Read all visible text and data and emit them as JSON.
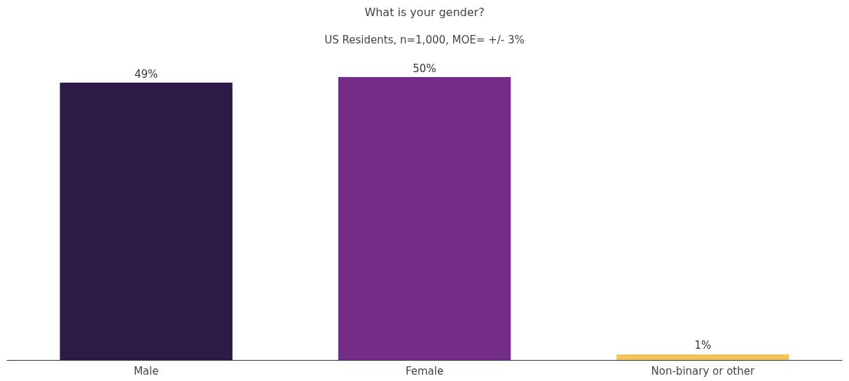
{
  "chart_data": {
    "type": "bar",
    "title": "What is your gender?",
    "subtitle": "US Residents, n=1,000, MOE= +/- 3%",
    "categories": [
      "Male",
      "Female",
      "Non-binary or other"
    ],
    "values": [
      49,
      50,
      1
    ],
    "colors": [
      "#2e1a47",
      "#732d89",
      "#f2c45c"
    ],
    "value_labels": [
      "49%",
      "50%",
      "1%"
    ]
  }
}
